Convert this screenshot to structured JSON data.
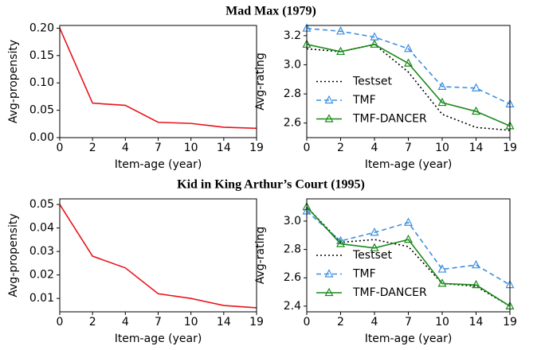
{
  "chart_data": [
    {
      "type": "line",
      "title": "Mad Max (1979)",
      "xlabel": "Item-age (year)",
      "ylabel": "Avg-propensity",
      "categories": [
        "0",
        "2",
        "4",
        "7",
        "10",
        "14",
        "19"
      ],
      "series": [
        {
          "color": "#e8141b",
          "linestyle": "solid",
          "values": [
            0.2,
            0.063,
            0.059,
            0.028,
            0.026,
            0.019,
            0.017
          ]
        }
      ],
      "ylim": [
        0,
        0.205
      ],
      "yticks": [
        {
          "value": 0,
          "label": "0.00"
        },
        0.05,
        {
          "value": 0.1,
          "label": "0.10"
        },
        0.15,
        {
          "value": 0.2,
          "label": "0.20"
        }
      ]
    },
    {
      "type": "line",
      "xlabel": "Item-age (year)",
      "ylabel": "Avg-rating",
      "legend": "center left",
      "categories": [
        "0",
        "2",
        "4",
        "7",
        "10",
        "14",
        "19"
      ],
      "series": [
        {
          "name": "Testset",
          "color": "#000000",
          "linestyle": "dotted",
          "values": [
            3.11,
            3.09,
            3.14,
            2.95,
            2.66,
            2.57,
            2.55
          ]
        },
        {
          "name": "TMF",
          "color": "#3d8fe0",
          "linestyle": "dashed",
          "marker": "triangle",
          "values": [
            3.25,
            3.23,
            3.19,
            3.11,
            2.85,
            2.84,
            2.73
          ]
        },
        {
          "name": "TMF-DANCER",
          "color": "#1a8a1a",
          "linestyle": "solid",
          "marker": "triangle",
          "values": [
            3.14,
            3.09,
            3.14,
            3.01,
            2.74,
            2.68,
            2.58
          ]
        }
      ],
      "ylim": [
        2.5,
        3.27
      ],
      "yticks": [
        2.6,
        2.8,
        {
          "value": 3,
          "label": "3.0"
        },
        3.2
      ]
    },
    {
      "type": "line",
      "title": "Kid in King Arthur’s Court (1995)",
      "xlabel": "Item-age (year)",
      "ylabel": "Avg-propensity",
      "categories": [
        "0",
        "2",
        "4",
        "7",
        "10",
        "14",
        "19"
      ],
      "series": [
        {
          "color": "#e8141b",
          "linestyle": "solid",
          "values": [
            0.05,
            0.028,
            0.023,
            0.012,
            0.01,
            0.007,
            0.006
          ]
        }
      ],
      "ylim": [
        0.0043,
        0.0524
      ],
      "yticks": [
        0.01,
        0.02,
        0.03,
        0.04,
        0.05
      ]
    },
    {
      "type": "line",
      "xlabel": "Item-age (year)",
      "ylabel": "Avg-rating",
      "legend": "center left",
      "categories": [
        "0",
        "2",
        "4",
        "7",
        "10",
        "14",
        "19"
      ],
      "series": [
        {
          "name": "Testset",
          "color": "#000000",
          "linestyle": "dotted",
          "values": [
            3.1,
            2.85,
            2.87,
            2.82,
            2.56,
            2.54,
            2.4
          ]
        },
        {
          "name": "TMF",
          "color": "#3d8fe0",
          "linestyle": "dashed",
          "marker": "triangle",
          "values": [
            3.07,
            2.86,
            2.92,
            2.99,
            2.66,
            2.69,
            2.55
          ]
        },
        {
          "name": "TMF-DANCER",
          "color": "#1a8a1a",
          "linestyle": "solid",
          "marker": "triangle",
          "values": [
            3.1,
            2.84,
            2.81,
            2.87,
            2.56,
            2.55,
            2.4
          ]
        }
      ],
      "ylim": [
        2.36,
        3.157
      ],
      "yticks": [
        2.4,
        2.6,
        2.8,
        {
          "value": 3,
          "label": "3.0"
        }
      ]
    }
  ]
}
